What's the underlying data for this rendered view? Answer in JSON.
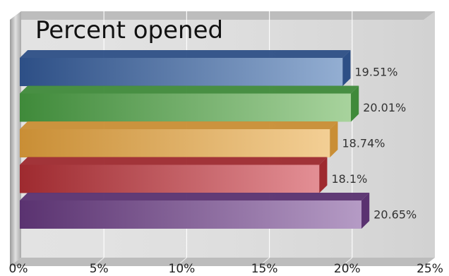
{
  "chart_data": {
    "type": "bar",
    "orientation": "horizontal",
    "title": "Percent opened",
    "xlabel": "",
    "ylabel": "",
    "xlim": [
      0,
      25
    ],
    "ticks": [
      "0%",
      "5%",
      "10%",
      "15%",
      "20%",
      "25%"
    ],
    "grid": true,
    "legend": "none",
    "bars": [
      {
        "value": 19.51,
        "label": "19.51%",
        "color": "#2d4f86",
        "light": "#93aed2"
      },
      {
        "value": 20.01,
        "label": "20.01%",
        "color": "#3f8a3a",
        "light": "#a8d39d"
      },
      {
        "value": 18.74,
        "label": "18.74%",
        "color": "#c98e35",
        "light": "#f3cf95"
      },
      {
        "value": 18.1,
        "label": "18.1%",
        "color": "#9e2a2f",
        "light": "#e38f95"
      },
      {
        "value": 20.65,
        "label": "20.65%",
        "color": "#5a3270",
        "light": "#b59bc5"
      }
    ]
  }
}
